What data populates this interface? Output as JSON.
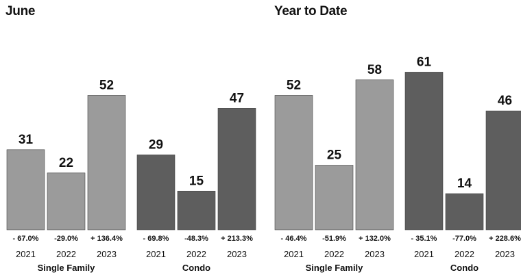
{
  "chart_data": [
    {
      "type": "bar",
      "title": "June",
      "groups": [
        {
          "name": "Single Family",
          "color": "#9b9b9b",
          "categories": [
            "2021",
            "2022",
            "2023"
          ],
          "values": [
            31,
            22,
            52
          ],
          "changes": [
            "- 67.0%",
            "-29.0%",
            "+ 136.4%"
          ]
        },
        {
          "name": "Condo",
          "color": "#5e5e5e",
          "categories": [
            "2021",
            "2022",
            "2023"
          ],
          "values": [
            29,
            15,
            47
          ],
          "changes": [
            "- 69.8%",
            "-48.3%",
            "+ 213.3%"
          ]
        }
      ]
    },
    {
      "type": "bar",
      "title": "Year to Date",
      "groups": [
        {
          "name": "Single Family",
          "color": "#9b9b9b",
          "categories": [
            "2021",
            "2022",
            "2023"
          ],
          "values": [
            52,
            25,
            58
          ],
          "changes": [
            "- 46.4%",
            "-51.9%",
            "+ 132.0%"
          ]
        },
        {
          "name": "Condo",
          "color": "#5e5e5e",
          "categories": [
            "2021",
            "2022",
            "2023"
          ],
          "values": [
            61,
            14,
            46
          ],
          "changes": [
            "- 35.1%",
            "-77.0%",
            "+ 228.6%"
          ]
        }
      ]
    }
  ]
}
